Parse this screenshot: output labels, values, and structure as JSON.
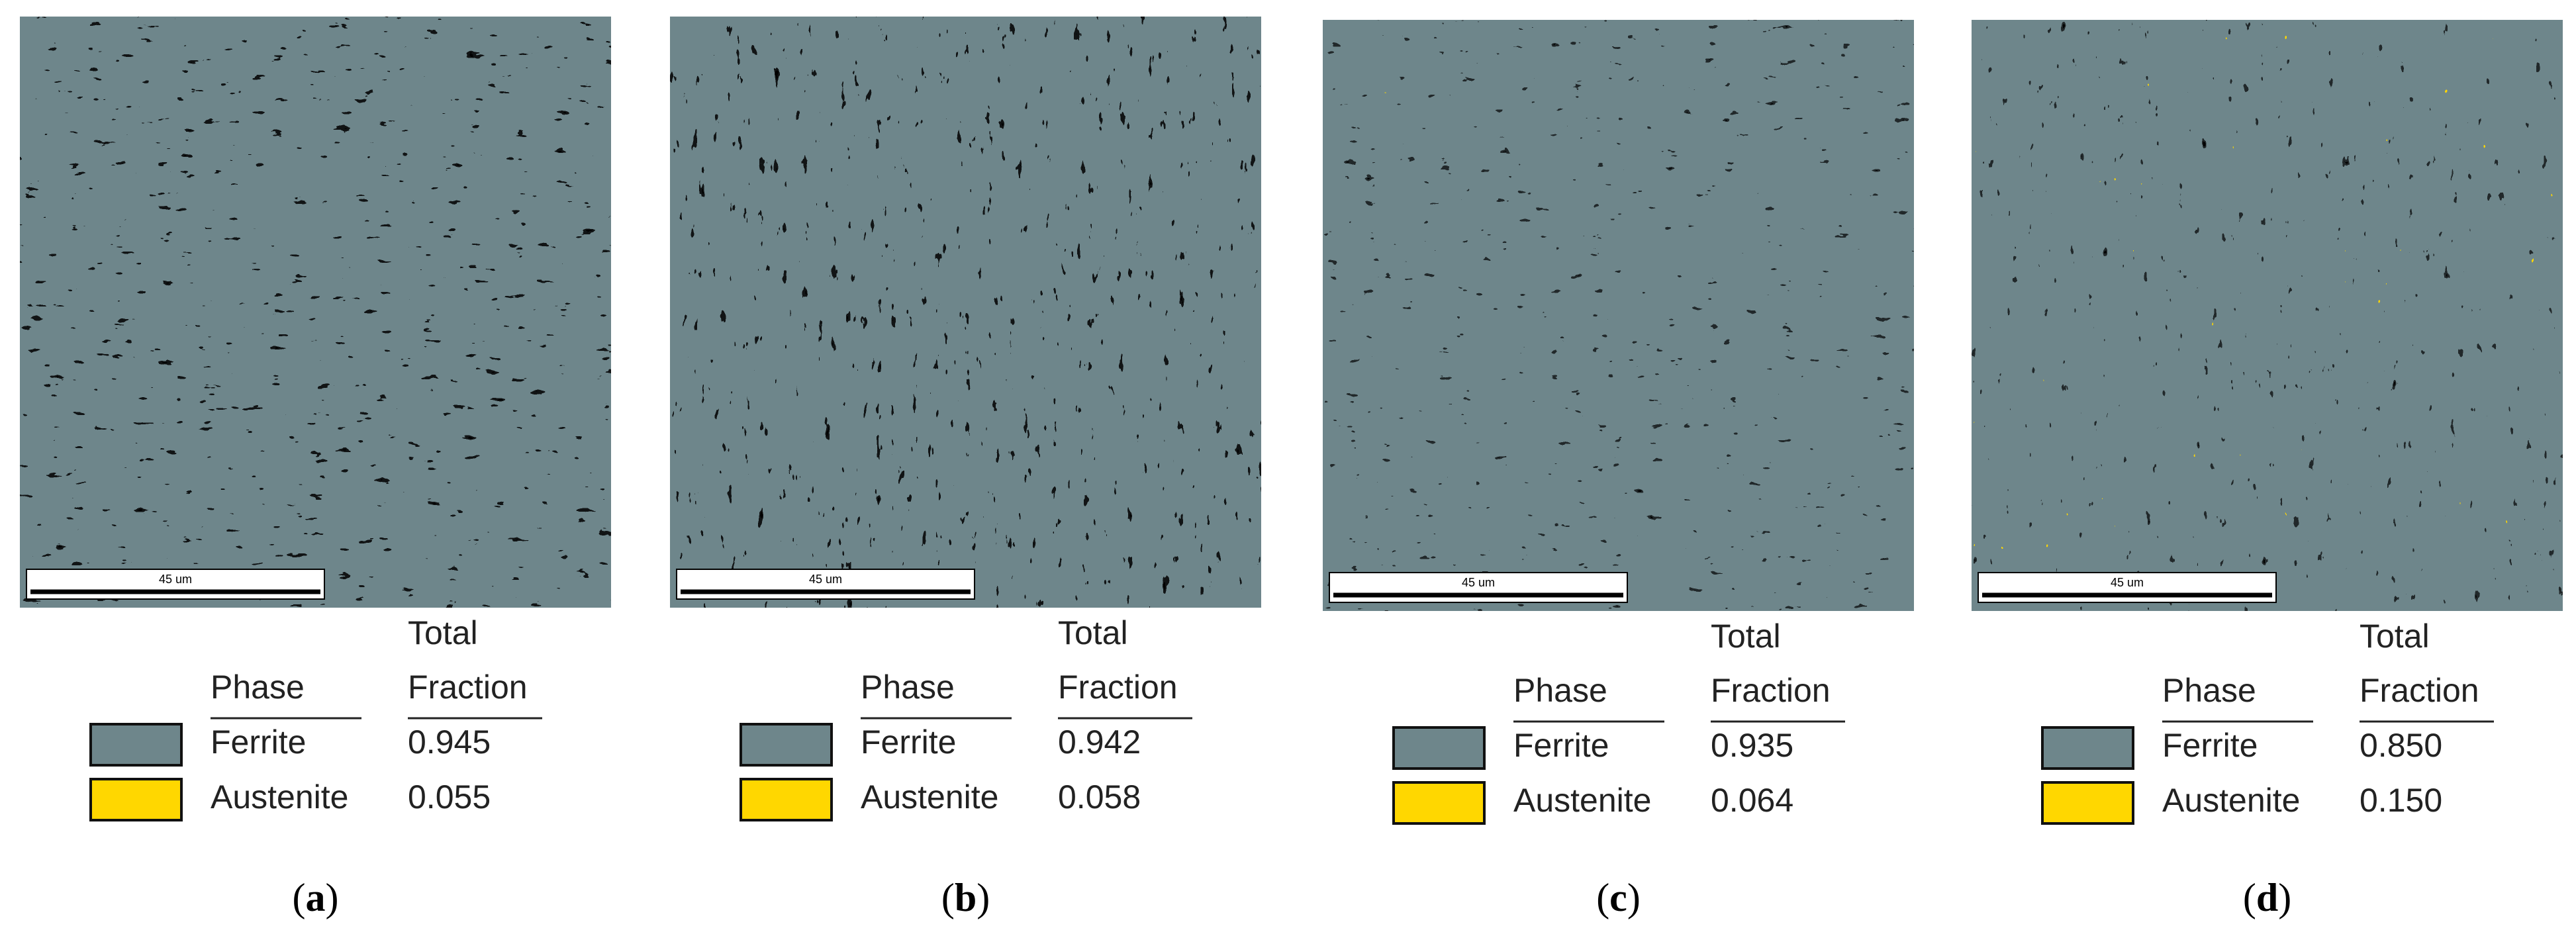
{
  "panels": [
    {
      "caption": [
        "(",
        "a",
        ")"
      ],
      "scale_bar": "45 um",
      "table": {
        "header_top": "Total",
        "headers": [
          "Phase",
          "Fraction"
        ],
        "rows": [
          {
            "phase": "Ferrite",
            "fraction": "0.945",
            "color": "#6e868b"
          },
          {
            "phase": "Austenite",
            "fraction": "0.055",
            "color": "#ffd700"
          }
        ]
      }
    },
    {
      "caption": [
        "(",
        "b",
        ")"
      ],
      "scale_bar": "45 um",
      "table": {
        "header_top": "Total",
        "headers": [
          "Phase",
          "Fraction"
        ],
        "rows": [
          {
            "phase": "Ferrite",
            "fraction": "0.942",
            "color": "#6e868b"
          },
          {
            "phase": "Austenite",
            "fraction": "0.058",
            "color": "#ffd700"
          }
        ]
      }
    },
    {
      "caption": [
        "(",
        "c",
        ")"
      ],
      "scale_bar": "45 um",
      "table": {
        "header_top": "Total",
        "headers": [
          "Phase",
          "Fraction"
        ],
        "rows": [
          {
            "phase": "Ferrite",
            "fraction": "0.935",
            "color": "#6e868b"
          },
          {
            "phase": "Austenite",
            "fraction": "0.064",
            "color": "#ffd700"
          }
        ]
      }
    },
    {
      "caption": [
        "(",
        "d",
        ")"
      ],
      "scale_bar": "45 um",
      "table": {
        "header_top": "Total",
        "headers": [
          "Phase",
          "Fraction"
        ],
        "rows": [
          {
            "phase": "Ferrite",
            "fraction": "0.850",
            "color": "#6e868b"
          },
          {
            "phase": "Austenite",
            "fraction": "0.150",
            "color": "#ffd700"
          }
        ]
      }
    }
  ]
}
